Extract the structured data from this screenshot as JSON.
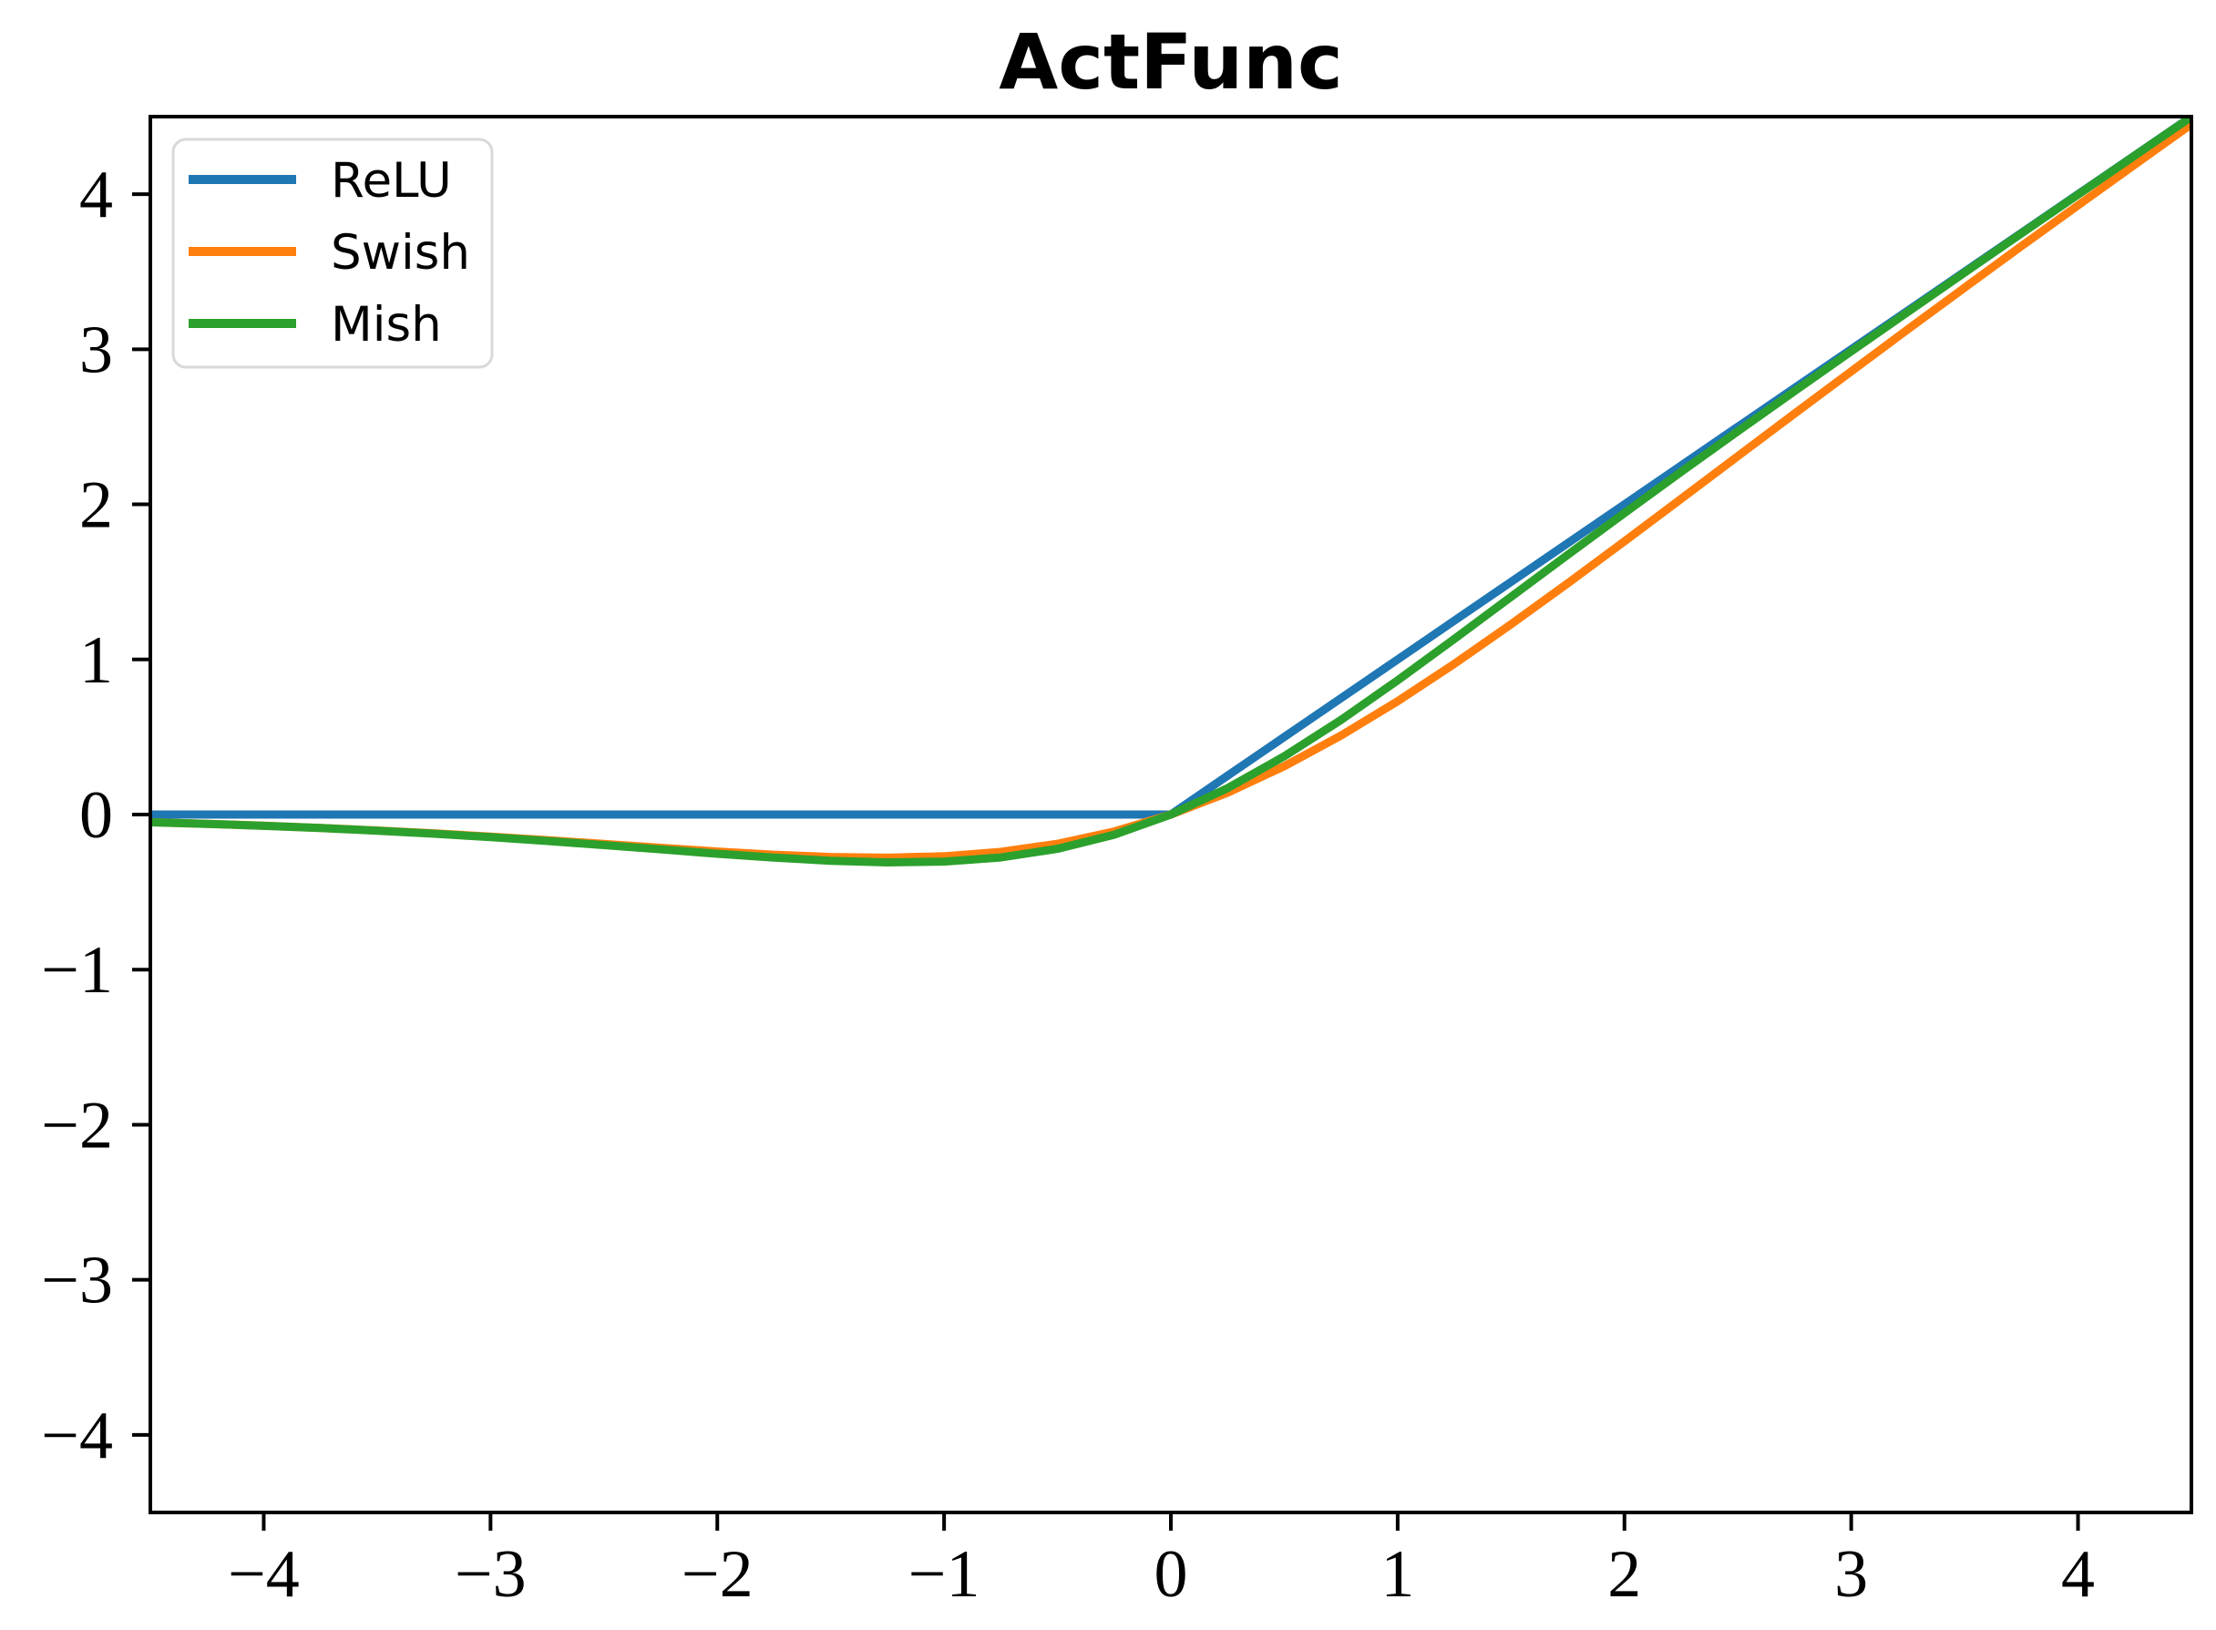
{
  "title": "ActFunc",
  "legend": {
    "items": [
      {
        "label": "ReLU",
        "color": "#1f77b4"
      },
      {
        "label": "Swish",
        "color": "#ff7f0e"
      },
      {
        "label": "Mish",
        "color": "#2ca02c"
      }
    ]
  },
  "axes": {
    "spine_color": "#000000",
    "tick_color": "#000000",
    "background": "#ffffff",
    "legend_border_color": "#d9d9d9",
    "legend_background": "rgba(255,255,255,0.8)"
  },
  "chart_data": {
    "type": "line",
    "title": "ActFunc",
    "xlabel": "",
    "ylabel": "",
    "xlim": [
      -4.5,
      4.5
    ],
    "ylim": [
      -4.5,
      4.5
    ],
    "xticks": [
      -4,
      -3,
      -2,
      -1,
      0,
      1,
      2,
      3,
      4
    ],
    "yticks": [
      -4,
      -3,
      -2,
      -1,
      0,
      1,
      2,
      3,
      4
    ],
    "grid": false,
    "legend_position": "upper-left",
    "x": [
      -4.5,
      -4.25,
      -4.0,
      -3.75,
      -3.5,
      -3.25,
      -3.0,
      -2.75,
      -2.5,
      -2.25,
      -2.0,
      -1.75,
      -1.5,
      -1.25,
      -1.0,
      -0.75,
      -0.5,
      -0.25,
      0.0,
      0.25,
      0.5,
      0.75,
      1.0,
      1.25,
      1.5,
      1.75,
      2.0,
      2.25,
      2.5,
      2.75,
      3.0,
      3.25,
      3.5,
      3.75,
      4.0,
      4.25,
      4.5
    ],
    "series": [
      {
        "name": "ReLU",
        "color": "#1f77b4",
        "values": [
          0,
          0,
          0,
          0,
          0,
          0,
          0,
          0,
          0,
          0,
          0,
          0,
          0,
          0,
          0,
          0,
          0,
          0,
          0,
          0.25,
          0.5,
          0.75,
          1.0,
          1.25,
          1.5,
          1.75,
          2.0,
          2.25,
          2.5,
          2.75,
          3.0,
          3.25,
          3.5,
          3.75,
          4.0,
          4.25,
          4.5
        ]
      },
      {
        "name": "Swish",
        "color": "#ff7f0e",
        "values": [
          -0.0494,
          -0.0598,
          -0.0719,
          -0.0862,
          -0.1026,
          -0.1213,
          -0.1423,
          -0.1652,
          -0.1897,
          -0.2145,
          -0.2384,
          -0.2591,
          -0.2736,
          -0.2784,
          -0.2689,
          -0.2406,
          -0.1888,
          -0.1095,
          0.0,
          0.1405,
          0.3112,
          0.5094,
          0.7311,
          0.9716,
          1.2264,
          1.4909,
          1.7616,
          2.0355,
          2.3104,
          2.5848,
          2.8577,
          3.1287,
          3.3974,
          3.6638,
          3.9281,
          4.1902,
          4.4506
        ]
      },
      {
        "name": "Mish",
        "color": "#2ca02c",
        "values": [
          -0.0497,
          -0.0602,
          -0.0726,
          -0.0872,
          -0.1041,
          -0.1236,
          -0.1456,
          -0.1702,
          -0.1968,
          -0.2247,
          -0.2525,
          -0.2781,
          -0.2981,
          -0.3084,
          -0.3034,
          -0.2765,
          -0.2209,
          -0.1299,
          0.0,
          0.1696,
          0.3752,
          0.61,
          0.8651,
          1.1319,
          1.4034,
          1.6749,
          1.944,
          2.2095,
          2.4714,
          2.7302,
          2.9865,
          3.241,
          3.494,
          3.746,
          3.9974,
          4.2483,
          4.4989
        ]
      }
    ]
  }
}
